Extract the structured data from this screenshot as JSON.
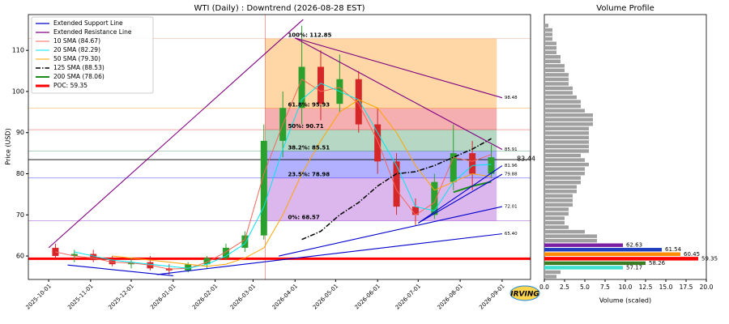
{
  "chart_data": [
    {
      "type": "candlestick",
      "title": "WTI (Daily) : Downtrend (2026-08-28 EST)",
      "y_label": "Price (USD)",
      "x": [
        "2025-10-06",
        "2025-10-20",
        "2025-11-03",
        "2025-11-17",
        "2025-12-01",
        "2025-12-15",
        "2025-12-29",
        "2026-01-12",
        "2026-01-26",
        "2026-02-09",
        "2026-02-23",
        "2026-03-09",
        "2026-03-23",
        "2026-04-06",
        "2026-04-20",
        "2026-05-04",
        "2026-05-18",
        "2026-06-01",
        "2026-06-15",
        "2026-06-29",
        "2026-07-13",
        "2026-07-27",
        "2026-08-10",
        "2026-08-24"
      ],
      "open": [
        62,
        60,
        60.5,
        59,
        58,
        58.5,
        57,
        56.5,
        58,
        59.5,
        62,
        65,
        88,
        96,
        106,
        97,
        103,
        92,
        83,
        72,
        70,
        78,
        85,
        80
      ],
      "high": [
        63,
        61.5,
        61.5,
        60,
        59.5,
        60,
        58,
        58.5,
        60,
        63,
        66,
        92,
        100,
        116,
        110,
        109,
        105,
        96,
        85,
        74,
        80,
        92,
        88,
        87
      ],
      "low": [
        59,
        58.5,
        58.5,
        57.5,
        57,
        56.5,
        55.5,
        56,
        57,
        59,
        61,
        64,
        84,
        92,
        93,
        95,
        90,
        80,
        70,
        67.5,
        69,
        76,
        76,
        79
      ],
      "close": [
        60,
        60.5,
        59,
        58,
        58.5,
        57,
        56.5,
        58,
        59.5,
        62,
        65,
        88,
        96,
        106,
        97,
        103,
        92,
        83,
        72,
        70,
        78,
        85,
        80,
        84
      ],
      "up_color": "#2ca02c",
      "down_color": "#d62728",
      "xlim": [
        "2025-09-16",
        "2026-09-22"
      ],
      "xticks": [
        "2025-10-01",
        "2025-11-01",
        "2025-12-01",
        "2026-01-01",
        "2026-02-01",
        "2026-03-01",
        "2026-04-01",
        "2026-05-01",
        "2026-06-01",
        "2026-07-01",
        "2026-08-01",
        "2026-09-01"
      ],
      "ylim": [
        54.3,
        118.7
      ],
      "yticks": [
        60,
        70,
        80,
        90,
        100,
        110
      ],
      "legend": "upper left",
      "support": {
        "name": "Extended Support Line",
        "color": "#0000cd",
        "lines": [
          {
            "x": [
              "2025-10-15",
              "2026-01-01"
            ],
            "values": [
              57.8,
              55.2
            ]
          },
          {
            "x": [
              "2025-12-20",
              "2026-09-01"
            ],
            "values": [
              55.5,
              65.4
            ],
            "value_labels": [
              null,
              "65.40"
            ]
          },
          {
            "x": [
              "2026-03-20",
              "2026-09-01"
            ],
            "values": [
              60,
              72.01
            ],
            "value_labels": [
              null,
              "72.01"
            ]
          },
          {
            "x": [
              "2026-07-01",
              "2026-09-01"
            ],
            "values": [
              68,
              81.96
            ],
            "value_labels": [
              null,
              "81.96"
            ]
          },
          {
            "x": [
              "2026-07-01",
              "2026-09-01"
            ],
            "values": [
              68,
              79.88
            ],
            "value_labels": [
              null,
              "79.88"
            ]
          }
        ]
      },
      "resistance": {
        "name": "Extended Resistance Line",
        "color": "#800080",
        "lines": [
          {
            "x": [
              "2025-10-01",
              "2026-04-07"
            ],
            "values": [
              62,
              117.5
            ]
          },
          {
            "x": [
              "2026-04-01",
              "2026-09-01"
            ],
            "values": [
              113,
              98.48
            ],
            "value_labels": [
              null,
              "98.48"
            ]
          },
          {
            "x": [
              "2026-04-01",
              "2026-09-01"
            ],
            "values": [
              113,
              85.91
            ],
            "value_labels": [
              null,
              "85.91"
            ]
          }
        ]
      },
      "series": [
        {
          "name": "10 SMA (84.67)",
          "color": "#f4665a",
          "dash": "solid",
          "width": 1,
          "values": [
            61,
            60,
            59.5,
            58.5,
            58.3,
            57.8,
            56.8,
            57,
            58.5,
            61,
            64,
            80,
            92,
            103,
            100,
            101,
            97,
            88,
            76,
            70,
            73,
            84,
            83,
            84.67
          ]
        },
        {
          "name": "20 SMA (82.29)",
          "color": "#00e5ee",
          "dash": "solid",
          "width": 1,
          "values": [
            null,
            61,
            60,
            59,
            58.5,
            58,
            57.5,
            57,
            58,
            60,
            63,
            72,
            86,
            98,
            102,
            100,
            98,
            90,
            82,
            72,
            71,
            78,
            82,
            82.29
          ]
        },
        {
          "name": "50 SMA (79.30)",
          "color": "#ffa500",
          "dash": "solid",
          "width": 1,
          "values": [
            null,
            null,
            null,
            60,
            59.5,
            59,
            58.5,
            58,
            57.5,
            58,
            59.5,
            62,
            70,
            80,
            88,
            95,
            98,
            96,
            90,
            82,
            76,
            78,
            80,
            79.3
          ]
        },
        {
          "name": "125 SMA (88.53)",
          "color": "#000000",
          "dash": "dashdot",
          "width": 1.5,
          "values": [
            null,
            null,
            null,
            null,
            null,
            null,
            null,
            null,
            null,
            null,
            null,
            null,
            null,
            64,
            66,
            70,
            73,
            77,
            80,
            80.5,
            82,
            84,
            86,
            88.53
          ]
        },
        {
          "name": "200 SMA (78.06)",
          "color": "#1a8a1a",
          "dash": "solid",
          "width": 2,
          "values": [
            null,
            null,
            null,
            null,
            null,
            null,
            null,
            null,
            null,
            null,
            null,
            null,
            null,
            null,
            null,
            null,
            null,
            null,
            null,
            null,
            null,
            75.5,
            77,
            78.06
          ]
        }
      ],
      "poc": {
        "name": "POC: 59.35",
        "value": 59.35,
        "color": "#ff0000"
      },
      "current_price": 83.44,
      "fib": {
        "x": [
          "2026-03-10",
          "2026-08-28"
        ],
        "levels": [
          {
            "value": 112.85,
            "label": "100%: 112.85",
            "color": "#e9967a"
          },
          {
            "value": 95.93,
            "label": "61.8%: 95.93",
            "color": "#ff8c00"
          },
          {
            "value": 90.71,
            "label": "50%: 90.71",
            "color": "#e31a1c"
          },
          {
            "value": 85.51,
            "label": "38.2%: 85.51",
            "color": "#2e8b57"
          },
          {
            "value": 78.98,
            "label": "23.5%: 78.98",
            "color": "#1f1fff"
          },
          {
            "value": 68.57,
            "label": "0%: 68.57",
            "color": "#9932cc"
          }
        ]
      }
    },
    {
      "type": "barh",
      "title": "Volume Profile",
      "x_label": "Volume (scaled)",
      "y": [
        54.99,
        56.08,
        57.17,
        58.26,
        59.35,
        60.45,
        61.54,
        62.63,
        63.72,
        64.81,
        65.9,
        66.99,
        68.08,
        69.17,
        70.26,
        71.35,
        72.44,
        73.53,
        74.62,
        75.71,
        76.8,
        77.89,
        78.98,
        80.07,
        81.16,
        82.25,
        83.34,
        84.43,
        85.52,
        86.61,
        87.7,
        88.79,
        89.88,
        90.97,
        92.06,
        93.15,
        94.24,
        95.33,
        96.42,
        97.51,
        98.6,
        99.69,
        100.78,
        101.87,
        102.96,
        104.05,
        105.14,
        106.23,
        107.32,
        108.41,
        109.5,
        110.59,
        111.68,
        112.77,
        113.86,
        114.95,
        116.04
      ],
      "values": [
        1.5,
        2,
        9.7,
        12.5,
        19,
        16.8,
        14.5,
        9.7,
        6.5,
        6.5,
        5,
        3,
        2.5,
        2.5,
        3,
        3,
        3.5,
        3.5,
        3.5,
        4,
        4,
        4.5,
        4.5,
        5,
        5,
        5.5,
        5,
        4.5,
        5.5,
        5.5,
        5.5,
        5.5,
        5.5,
        5.5,
        6,
        6,
        6,
        5,
        4.5,
        4.5,
        4,
        3.5,
        3.5,
        3,
        3,
        3,
        2.5,
        2.5,
        2,
        2,
        1.5,
        1.5,
        1.5,
        1,
        1,
        1,
        0.5
      ],
      "bar_color": "#a0a0a0",
      "colors": [
        null,
        null,
        "#40e0d0",
        "#3a7d22",
        "#ff0000",
        "#ff8c00",
        "#1f3fbf",
        "#7b1fa2",
        null,
        null,
        null,
        null,
        null,
        null,
        null,
        null,
        null,
        null,
        null,
        null,
        null,
        null,
        null,
        null,
        null,
        null,
        null,
        null,
        null,
        null,
        null,
        null,
        null,
        null,
        null,
        null,
        null,
        null,
        null,
        null,
        null,
        null,
        null,
        null,
        null,
        null,
        null,
        null,
        null,
        null,
        null,
        null,
        null,
        null,
        null,
        null,
        null
      ],
      "xlim": [
        0,
        20
      ],
      "xticks": [
        {
          "value": 0,
          "label": "0.0"
        },
        2.5,
        {
          "value": 5,
          "label": "5.0"
        },
        7.5,
        {
          "value": 10,
          "label": "10.0"
        },
        12.5,
        {
          "value": 15,
          "label": "15.0"
        },
        17.5,
        {
          "value": 20,
          "label": "20.0"
        }
      ],
      "ylim": [
        54.3,
        118.7
      ]
    }
  ],
  "logo": "IRVING"
}
